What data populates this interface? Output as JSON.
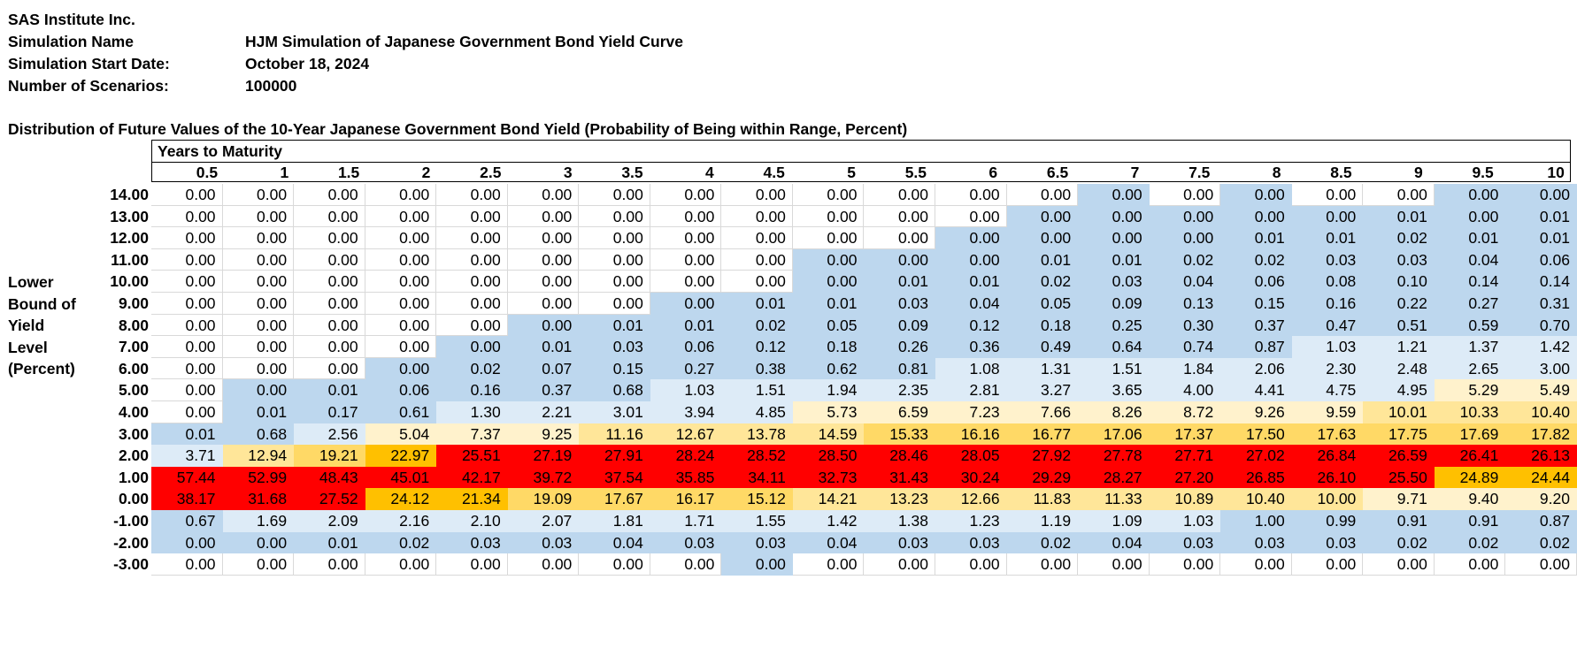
{
  "meta": {
    "company": "SAS Institute Inc.",
    "simulation_name_label": "Simulation Name",
    "simulation_name": "HJM Simulation of Japanese Government Bond Yield Curve",
    "start_date_label": "Simulation Start Date:",
    "start_date": "October 18, 2024",
    "scenarios_label": "Number of Scenarios:",
    "scenarios": "100000"
  },
  "table": {
    "title": "Distribution of Future Values of the 10-Year Japanese Government Bond Yield (Probability of Being within Range, Percent)",
    "column_group_label": "Years to Maturity",
    "row_axis_label": [
      "Lower",
      "Bound of",
      "Yield",
      "Level",
      "(Percent)"
    ],
    "columns": [
      "0.5",
      "1",
      "1.5",
      "2",
      "2.5",
      "3",
      "3.5",
      "4",
      "4.5",
      "5",
      "5.5",
      "6",
      "6.5",
      "7",
      "7.5",
      "8",
      "8.5",
      "9",
      "9.5",
      "10"
    ],
    "colors": {
      "w": "#ffffff",
      "b": "#bdd7ee",
      "lb": "#ddebf7",
      "y1": "#fff2cc",
      "y2": "#ffe699",
      "y3": "#ffd966",
      "o": "#ffc000",
      "r": "#ff0000"
    },
    "rows": [
      {
        "label": "14.00",
        "values": [
          "0.00",
          "0.00",
          "0.00",
          "0.00",
          "0.00",
          "0.00",
          "0.00",
          "0.00",
          "0.00",
          "0.00",
          "0.00",
          "0.00",
          "0.00",
          "0.00",
          "0.00",
          "0.00",
          "0.00",
          "0.00",
          "0.00",
          "0.00"
        ],
        "fills": [
          "w",
          "w",
          "w",
          "w",
          "w",
          "w",
          "w",
          "w",
          "w",
          "w",
          "w",
          "w",
          "w",
          "b",
          "w",
          "b",
          "w",
          "w",
          "b",
          "b"
        ]
      },
      {
        "label": "13.00",
        "values": [
          "0.00",
          "0.00",
          "0.00",
          "0.00",
          "0.00",
          "0.00",
          "0.00",
          "0.00",
          "0.00",
          "0.00",
          "0.00",
          "0.00",
          "0.00",
          "0.00",
          "0.00",
          "0.00",
          "0.00",
          "0.01",
          "0.00",
          "0.01"
        ],
        "fills": [
          "w",
          "w",
          "w",
          "w",
          "w",
          "w",
          "w",
          "w",
          "w",
          "w",
          "w",
          "w",
          "b",
          "b",
          "b",
          "b",
          "b",
          "b",
          "b",
          "b"
        ]
      },
      {
        "label": "12.00",
        "values": [
          "0.00",
          "0.00",
          "0.00",
          "0.00",
          "0.00",
          "0.00",
          "0.00",
          "0.00",
          "0.00",
          "0.00",
          "0.00",
          "0.00",
          "0.00",
          "0.00",
          "0.00",
          "0.01",
          "0.01",
          "0.02",
          "0.01",
          "0.01"
        ],
        "fills": [
          "w",
          "w",
          "w",
          "w",
          "w",
          "w",
          "w",
          "w",
          "w",
          "w",
          "w",
          "b",
          "b",
          "b",
          "b",
          "b",
          "b",
          "b",
          "b",
          "b"
        ]
      },
      {
        "label": "11.00",
        "values": [
          "0.00",
          "0.00",
          "0.00",
          "0.00",
          "0.00",
          "0.00",
          "0.00",
          "0.00",
          "0.00",
          "0.00",
          "0.00",
          "0.00",
          "0.01",
          "0.01",
          "0.02",
          "0.02",
          "0.03",
          "0.03",
          "0.04",
          "0.06"
        ],
        "fills": [
          "w",
          "w",
          "w",
          "w",
          "w",
          "w",
          "w",
          "w",
          "w",
          "b",
          "b",
          "b",
          "b",
          "b",
          "b",
          "b",
          "b",
          "b",
          "b",
          "b"
        ]
      },
      {
        "label": "10.00",
        "values": [
          "0.00",
          "0.00",
          "0.00",
          "0.00",
          "0.00",
          "0.00",
          "0.00",
          "0.00",
          "0.00",
          "0.00",
          "0.01",
          "0.01",
          "0.02",
          "0.03",
          "0.04",
          "0.06",
          "0.08",
          "0.10",
          "0.14",
          "0.14"
        ],
        "fills": [
          "w",
          "w",
          "w",
          "w",
          "w",
          "w",
          "w",
          "w",
          "w",
          "b",
          "b",
          "b",
          "b",
          "b",
          "b",
          "b",
          "b",
          "b",
          "b",
          "b"
        ]
      },
      {
        "label": "9.00",
        "values": [
          "0.00",
          "0.00",
          "0.00",
          "0.00",
          "0.00",
          "0.00",
          "0.00",
          "0.00",
          "0.01",
          "0.01",
          "0.03",
          "0.04",
          "0.05",
          "0.09",
          "0.13",
          "0.15",
          "0.16",
          "0.22",
          "0.27",
          "0.31"
        ],
        "fills": [
          "w",
          "w",
          "w",
          "w",
          "w",
          "w",
          "w",
          "b",
          "b",
          "b",
          "b",
          "b",
          "b",
          "b",
          "b",
          "b",
          "b",
          "b",
          "b",
          "b"
        ]
      },
      {
        "label": "8.00",
        "values": [
          "0.00",
          "0.00",
          "0.00",
          "0.00",
          "0.00",
          "0.00",
          "0.01",
          "0.01",
          "0.02",
          "0.05",
          "0.09",
          "0.12",
          "0.18",
          "0.25",
          "0.30",
          "0.37",
          "0.47",
          "0.51",
          "0.59",
          "0.70"
        ],
        "fills": [
          "w",
          "w",
          "w",
          "w",
          "w",
          "b",
          "b",
          "b",
          "b",
          "b",
          "b",
          "b",
          "b",
          "b",
          "b",
          "b",
          "b",
          "b",
          "b",
          "b"
        ]
      },
      {
        "label": "7.00",
        "values": [
          "0.00",
          "0.00",
          "0.00",
          "0.00",
          "0.00",
          "0.01",
          "0.03",
          "0.06",
          "0.12",
          "0.18",
          "0.26",
          "0.36",
          "0.49",
          "0.64",
          "0.74",
          "0.87",
          "1.03",
          "1.21",
          "1.37",
          "1.42"
        ],
        "fills": [
          "w",
          "w",
          "w",
          "w",
          "b",
          "b",
          "b",
          "b",
          "b",
          "b",
          "b",
          "b",
          "b",
          "b",
          "b",
          "b",
          "lb",
          "lb",
          "lb",
          "lb"
        ]
      },
      {
        "label": "6.00",
        "values": [
          "0.00",
          "0.00",
          "0.00",
          "0.00",
          "0.02",
          "0.07",
          "0.15",
          "0.27",
          "0.38",
          "0.62",
          "0.81",
          "1.08",
          "1.31",
          "1.51",
          "1.84",
          "2.06",
          "2.30",
          "2.48",
          "2.65",
          "3.00"
        ],
        "fills": [
          "w",
          "w",
          "w",
          "b",
          "b",
          "b",
          "b",
          "b",
          "b",
          "b",
          "b",
          "lb",
          "lb",
          "lb",
          "lb",
          "lb",
          "lb",
          "lb",
          "lb",
          "lb"
        ]
      },
      {
        "label": "5.00",
        "values": [
          "0.00",
          "0.00",
          "0.01",
          "0.06",
          "0.16",
          "0.37",
          "0.68",
          "1.03",
          "1.51",
          "1.94",
          "2.35",
          "2.81",
          "3.27",
          "3.65",
          "4.00",
          "4.41",
          "4.75",
          "4.95",
          "5.29",
          "5.49"
        ],
        "fills": [
          "w",
          "b",
          "b",
          "b",
          "b",
          "b",
          "b",
          "lb",
          "lb",
          "lb",
          "lb",
          "lb",
          "lb",
          "lb",
          "lb",
          "lb",
          "lb",
          "lb",
          "y1",
          "y1"
        ]
      },
      {
        "label": "4.00",
        "values": [
          "0.00",
          "0.01",
          "0.17",
          "0.61",
          "1.30",
          "2.21",
          "3.01",
          "3.94",
          "4.85",
          "5.73",
          "6.59",
          "7.23",
          "7.66",
          "8.26",
          "8.72",
          "9.26",
          "9.59",
          "10.01",
          "10.33",
          "10.40"
        ],
        "fills": [
          "w",
          "b",
          "b",
          "b",
          "lb",
          "lb",
          "lb",
          "lb",
          "lb",
          "y1",
          "y1",
          "y1",
          "y1",
          "y1",
          "y1",
          "y1",
          "y1",
          "y2",
          "y2",
          "y2"
        ]
      },
      {
        "label": "3.00",
        "values": [
          "0.01",
          "0.68",
          "2.56",
          "5.04",
          "7.37",
          "9.25",
          "11.16",
          "12.67",
          "13.78",
          "14.59",
          "15.33",
          "16.16",
          "16.77",
          "17.06",
          "17.37",
          "17.50",
          "17.63",
          "17.75",
          "17.69",
          "17.82"
        ],
        "fills": [
          "b",
          "b",
          "lb",
          "y1",
          "y1",
          "y1",
          "y2",
          "y2",
          "y2",
          "y2",
          "y3",
          "y3",
          "y3",
          "y3",
          "y3",
          "y3",
          "y3",
          "y3",
          "y3",
          "y3"
        ]
      },
      {
        "label": "2.00",
        "values": [
          "3.71",
          "12.94",
          "19.21",
          "22.97",
          "25.51",
          "27.19",
          "27.91",
          "28.24",
          "28.52",
          "28.50",
          "28.46",
          "28.05",
          "27.92",
          "27.78",
          "27.71",
          "27.02",
          "26.84",
          "26.59",
          "26.41",
          "26.13"
        ],
        "fills": [
          "lb",
          "y2",
          "y3",
          "o",
          "r",
          "r",
          "r",
          "r",
          "r",
          "r",
          "r",
          "r",
          "r",
          "r",
          "r",
          "r",
          "r",
          "r",
          "r",
          "r"
        ]
      },
      {
        "label": "1.00",
        "values": [
          "57.44",
          "52.99",
          "48.43",
          "45.01",
          "42.17",
          "39.72",
          "37.54",
          "35.85",
          "34.11",
          "32.73",
          "31.43",
          "30.24",
          "29.29",
          "28.27",
          "27.20",
          "26.85",
          "26.10",
          "25.50",
          "24.89",
          "24.44"
        ],
        "fills": [
          "r",
          "r",
          "r",
          "r",
          "r",
          "r",
          "r",
          "r",
          "r",
          "r",
          "r",
          "r",
          "r",
          "r",
          "r",
          "r",
          "r",
          "r",
          "o",
          "o"
        ]
      },
      {
        "label": "0.00",
        "values": [
          "38.17",
          "31.68",
          "27.52",
          "24.12",
          "21.34",
          "19.09",
          "17.67",
          "16.17",
          "15.12",
          "14.21",
          "13.23",
          "12.66",
          "11.83",
          "11.33",
          "10.89",
          "10.40",
          "10.00",
          "9.71",
          "9.40",
          "9.20"
        ],
        "fills": [
          "r",
          "r",
          "r",
          "o",
          "o",
          "y3",
          "y3",
          "y3",
          "y3",
          "y2",
          "y2",
          "y2",
          "y2",
          "y2",
          "y2",
          "y2",
          "y2",
          "y1",
          "y1",
          "y1"
        ]
      },
      {
        "label": "-1.00",
        "values": [
          "0.67",
          "1.69",
          "2.09",
          "2.16",
          "2.10",
          "2.07",
          "1.81",
          "1.71",
          "1.55",
          "1.42",
          "1.38",
          "1.23",
          "1.19",
          "1.09",
          "1.03",
          "1.00",
          "0.99",
          "0.91",
          "0.91",
          "0.87"
        ],
        "fills": [
          "b",
          "lb",
          "lb",
          "lb",
          "lb",
          "lb",
          "lb",
          "lb",
          "lb",
          "lb",
          "lb",
          "lb",
          "lb",
          "lb",
          "lb",
          "b",
          "b",
          "b",
          "b",
          "b"
        ]
      },
      {
        "label": "-2.00",
        "values": [
          "0.00",
          "0.00",
          "0.01",
          "0.02",
          "0.03",
          "0.03",
          "0.04",
          "0.03",
          "0.03",
          "0.04",
          "0.03",
          "0.03",
          "0.02",
          "0.04",
          "0.03",
          "0.03",
          "0.03",
          "0.02",
          "0.02",
          "0.02"
        ],
        "fills": [
          "b",
          "b",
          "b",
          "b",
          "b",
          "b",
          "b",
          "b",
          "b",
          "b",
          "b",
          "b",
          "b",
          "b",
          "b",
          "b",
          "b",
          "b",
          "b",
          "b"
        ]
      },
      {
        "label": "-3.00",
        "values": [
          "0.00",
          "0.00",
          "0.00",
          "0.00",
          "0.00",
          "0.00",
          "0.00",
          "0.00",
          "0.00",
          "0.00",
          "0.00",
          "0.00",
          "0.00",
          "0.00",
          "0.00",
          "0.00",
          "0.00",
          "0.00",
          "0.00",
          "0.00"
        ],
        "fills": [
          "w",
          "w",
          "w",
          "w",
          "w",
          "w",
          "w",
          "w",
          "b",
          "w",
          "w",
          "w",
          "w",
          "w",
          "w",
          "w",
          "w",
          "w",
          "w",
          "w"
        ]
      }
    ]
  }
}
